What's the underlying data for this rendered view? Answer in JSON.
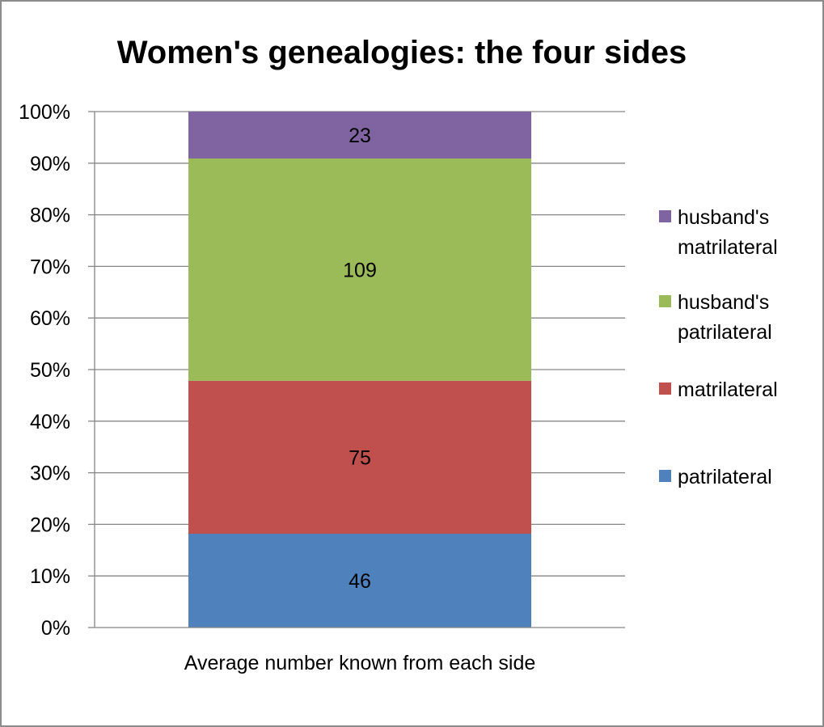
{
  "chart_data": {
    "type": "bar",
    "stacked": "percent",
    "title": "Women's genealogies: the four sides",
    "xlabel": "",
    "ylabel": "",
    "categories": [
      "Average number known from each side"
    ],
    "ylim": [
      0,
      100
    ],
    "yticks": [
      "0%",
      "10%",
      "20%",
      "30%",
      "40%",
      "50%",
      "60%",
      "70%",
      "80%",
      "90%",
      "100%"
    ],
    "grid": true,
    "legend_position": "right",
    "series": [
      {
        "name": "patrilateral",
        "values": [
          46
        ],
        "label": "46",
        "color": "#4f81bd"
      },
      {
        "name": "matrilateral",
        "values": [
          75
        ],
        "label": "75",
        "color": "#c0504d"
      },
      {
        "name": "husband's patrilateral",
        "values": [
          109
        ],
        "label": "109",
        "color": "#9bbb59"
      },
      {
        "name": "husband's matrilateral",
        "values": [
          23
        ],
        "label": "23",
        "color": "#8064a2"
      }
    ],
    "legend": [
      {
        "lines": [
          "husband's",
          "matrilateral"
        ],
        "color": "#8064a2"
      },
      {
        "lines": [
          "husband's",
          "patrilateral"
        ],
        "color": "#9bbb59"
      },
      {
        "lines": [
          "matrilateral"
        ],
        "color": "#c0504d"
      },
      {
        "lines": [
          "patrilateral"
        ],
        "color": "#4f81bd"
      }
    ]
  }
}
